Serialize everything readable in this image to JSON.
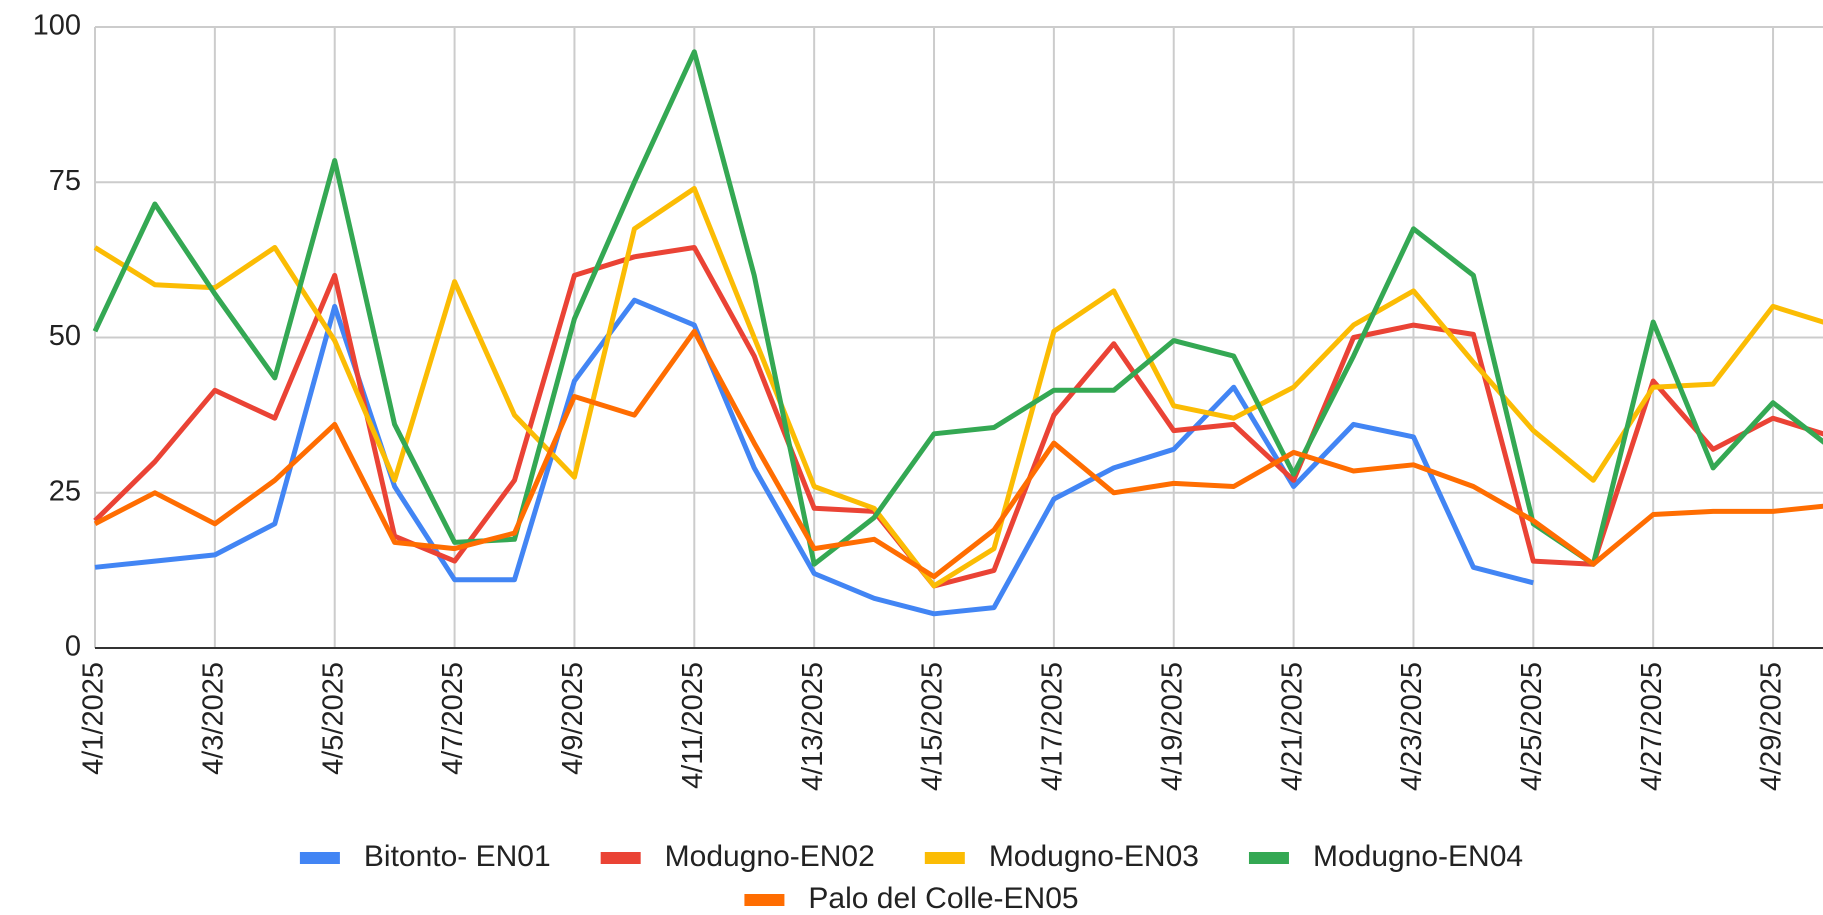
{
  "chart_data": {
    "type": "line",
    "categories": [
      "4/1/2025",
      null,
      "4/3/2025",
      null,
      "4/5/2025",
      null,
      "4/7/2025",
      null,
      "4/9/2025",
      null,
      "4/11/2025",
      null,
      "4/13/2025",
      null,
      "4/15/2025",
      null,
      "4/17/2025",
      null,
      "4/19/2025",
      null,
      "4/21/2025",
      null,
      "4/23/2025",
      null,
      "4/25/2025",
      null,
      "4/27/2025",
      null,
      "4/29/2025",
      null
    ],
    "series": [
      {
        "name": "Bitonto- EN01",
        "color": "#4285f4",
        "values": [
          13,
          14,
          15,
          20,
          55,
          26,
          11,
          11,
          43,
          56,
          52,
          29,
          12,
          8,
          5.5,
          6.5,
          24,
          29,
          32,
          42,
          26,
          36,
          34,
          13,
          10.5,
          null,
          null,
          null,
          null,
          null
        ]
      },
      {
        "name": "Modugno-EN02",
        "color": "#ea4335",
        "values": [
          20.5,
          30,
          41.5,
          37,
          60,
          18,
          14,
          27,
          60,
          63,
          64.5,
          47,
          22.5,
          22,
          10,
          12.5,
          37.5,
          49,
          35,
          36,
          27,
          50,
          52,
          50.5,
          14,
          13.5,
          43,
          32,
          37,
          34
        ]
      },
      {
        "name": "Modugno-EN03",
        "color": "#fbbc04",
        "values": [
          64.5,
          58.5,
          58,
          64.5,
          49.5,
          27,
          59,
          37.5,
          27.5,
          67.5,
          74,
          50,
          26,
          22.5,
          10,
          16,
          51,
          57.5,
          39,
          37,
          42,
          52,
          57.5,
          46,
          35,
          27,
          42,
          42.5,
          55,
          52
        ]
      },
      {
        "name": "Modugno-EN04",
        "color": "#34a853",
        "values": [
          51,
          71.5,
          57,
          43.5,
          78.5,
          36,
          17,
          17.5,
          53,
          75,
          96,
          60,
          13.5,
          21,
          34.5,
          35.5,
          41.5,
          41.5,
          49.5,
          47,
          28,
          47,
          67.5,
          60,
          20,
          13.5,
          52.5,
          29,
          39.5,
          32
        ]
      },
      {
        "name": "Palo del Colle-EN05",
        "color": "#ff6d01",
        "values": [
          20,
          25,
          20,
          27,
          36,
          17,
          16,
          18.5,
          40.5,
          37.5,
          51,
          33,
          16,
          17.5,
          11.5,
          19,
          33,
          25,
          26.5,
          26,
          31.5,
          28.5,
          29.5,
          26,
          20.5,
          13.5,
          21.5,
          22,
          22,
          23
        ]
      }
    ],
    "ylim": [
      0,
      100
    ],
    "yticks": [
      0,
      25,
      50,
      75,
      100
    ],
    "grid": true,
    "legend": "bottom"
  }
}
